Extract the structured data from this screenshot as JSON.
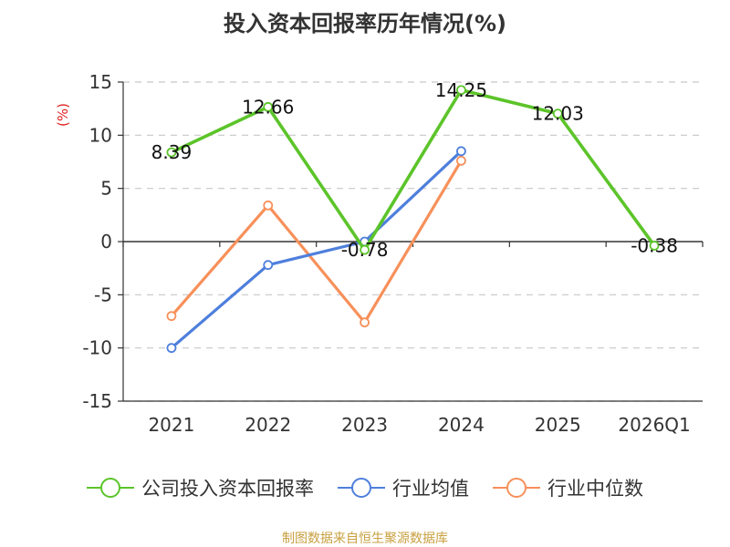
{
  "title": "投入资本回报率历年情况(%)",
  "unit_label": "(%)",
  "source_note": "制图数据来自恒生聚源数据库",
  "colors": {
    "company": "#5cc42a",
    "industry_avg": "#4e7fdc",
    "industry_median": "#f7905a",
    "unit": "#e02020",
    "source": "#c8a040"
  },
  "chart_data": {
    "type": "line",
    "title": "投入资本回报率历年情况(%)",
    "xlabel": "",
    "ylabel": "(%)",
    "ylim": [
      -15,
      15
    ],
    "yticks": [
      15,
      10,
      5,
      0,
      -5,
      -10,
      -15
    ],
    "grid": true,
    "legend_position": "bottom",
    "categories": [
      "2021",
      "2022",
      "2023",
      "2024",
      "2025",
      "2026Q1"
    ],
    "series": [
      {
        "name": "公司投入资本回报率",
        "color": "#5cc42a",
        "values": [
          8.39,
          12.66,
          -0.78,
          14.25,
          12.03,
          -0.38
        ],
        "data_labels": [
          "8.39",
          "12.66",
          "-0.78",
          "14.25",
          "12.03",
          "-0.38"
        ]
      },
      {
        "name": "行业均值",
        "color": "#4e7fdc",
        "values": [
          -10.0,
          -2.2,
          0.0,
          8.5,
          null,
          null
        ]
      },
      {
        "name": "行业中位数",
        "color": "#f7905a",
        "values": [
          -7.0,
          3.4,
          -7.6,
          7.6,
          null,
          null
        ]
      }
    ]
  }
}
